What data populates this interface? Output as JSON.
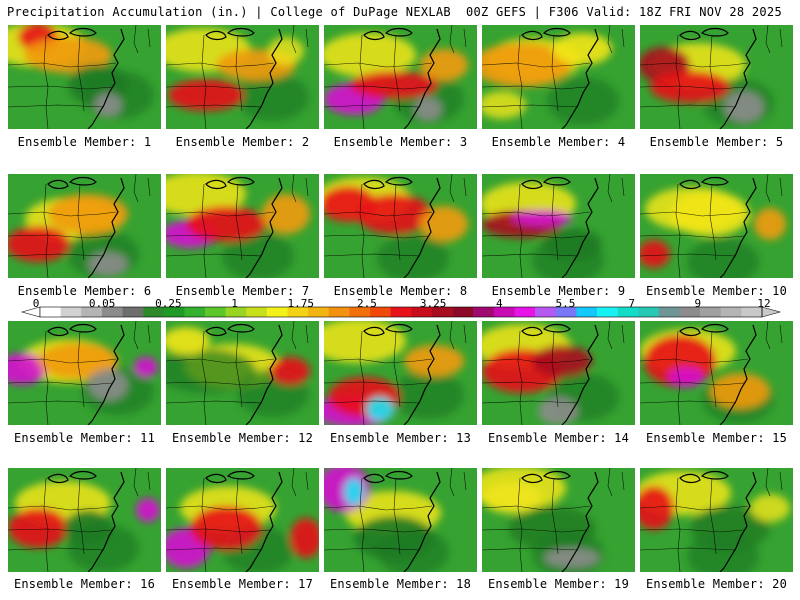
{
  "header": {
    "left": "Precipitation Accumulation (in.) | College of DuPage NEXLAB",
    "right": "00Z GEFS | F306 Valid: 18Z FRI NOV 28 2025"
  },
  "colors": {
    "land_base": "#36a231",
    "dark_green": "#1e7a22",
    "yellow": "#f2e61a",
    "orange": "#f29a10",
    "red": "#e8121a",
    "dark_red": "#a80c1e",
    "magenta": "#d512d2",
    "cyan": "#19e6f2",
    "gray": "#8c8c8c",
    "border": "#000000"
  },
  "panels": [
    {
      "label": "Ensemble Member: 1"
    },
    {
      "label": "Ensemble Member: 2"
    },
    {
      "label": "Ensemble Member: 3"
    },
    {
      "label": "Ensemble Member: 4"
    },
    {
      "label": "Ensemble Member: 5"
    },
    {
      "label": "Ensemble Member: 6"
    },
    {
      "label": "Ensemble Member: 7"
    },
    {
      "label": "Ensemble Member: 8"
    },
    {
      "label": "Ensemble Member: 9"
    },
    {
      "label": "Ensemble Member: 10"
    },
    {
      "label": "Ensemble Member: 11"
    },
    {
      "label": "Ensemble Member: 12"
    },
    {
      "label": "Ensemble Member: 13"
    },
    {
      "label": "Ensemble Member: 14"
    },
    {
      "label": "Ensemble Member: 15"
    },
    {
      "label": "Ensemble Member: 16"
    },
    {
      "label": "Ensemble Member: 17"
    },
    {
      "label": "Ensemble Member: 18"
    },
    {
      "label": "Ensemble Member: 19"
    },
    {
      "label": "Ensemble Member: 20"
    }
  ],
  "colorbar": {
    "labels": [
      "0",
      "0.05",
      "0.25",
      "1",
      "1.75",
      "2.5",
      "3.25",
      "4",
      "5.5",
      "7",
      "9",
      "12"
    ],
    "colors": [
      "#ffffff",
      "#d2d2d2",
      "#b4b4b4",
      "#8c8c8c",
      "#6e6e6e",
      "#2c8a2c",
      "#1e9a26",
      "#34b22e",
      "#5cc62a",
      "#98d424",
      "#c8e01c",
      "#f2f21a",
      "#f2d215",
      "#f2b410",
      "#f29210",
      "#f2700c",
      "#ef4a0c",
      "#e8121a",
      "#c80e1c",
      "#a80c1e",
      "#8c0a28",
      "#a00a70",
      "#c80ab4",
      "#e614e6",
      "#b45af0",
      "#7878f8",
      "#14c8f8",
      "#19f2f2",
      "#14dcc8",
      "#28c8b4",
      "#6e9696",
      "#8c8c8c",
      "#a0a0a0",
      "#b4b4b4",
      "#c8c8c8"
    ]
  }
}
